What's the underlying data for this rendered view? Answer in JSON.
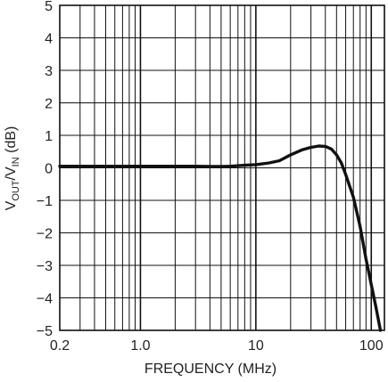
{
  "chart_data": {
    "type": "line",
    "xlabel": "FREQUENCY (MHz)",
    "ylabel_main": "V",
    "ylabel_sub1": "OUT",
    "ylabel_mid": "/V",
    "ylabel_sub2": "IN",
    "ylabel_unit": " (dB)",
    "x_scale": "log",
    "xlim": [
      0.2,
      130
    ],
    "ylim": [
      -5,
      5
    ],
    "x_tick_values": [
      0.2,
      1.0,
      10,
      100
    ],
    "x_tick_labels": [
      "0.2",
      "1.0",
      "10",
      "100"
    ],
    "y_tick_values": [
      5,
      4,
      3,
      2,
      1,
      0,
      -1,
      -2,
      -3,
      -4,
      -5
    ],
    "y_tick_labels": [
      "5",
      "4",
      "3",
      "2",
      "1",
      "0",
      "−1",
      "−2",
      "−3",
      "−4",
      "−5"
    ],
    "grid": true,
    "series": [
      {
        "x": [
          0.2,
          0.3,
          0.5,
          1.0,
          2.0,
          3.0,
          4.0,
          5.0,
          6.0,
          8.0,
          10,
          13,
          16,
          20,
          25,
          30,
          35,
          40,
          45,
          50,
          55,
          60,
          70,
          80,
          90,
          100,
          110,
          120
        ],
        "y": [
          0.05,
          0.05,
          0.05,
          0.05,
          0.05,
          0.05,
          0.04,
          0.04,
          0.05,
          0.08,
          0.1,
          0.15,
          0.22,
          0.4,
          0.55,
          0.63,
          0.67,
          0.66,
          0.58,
          0.4,
          0.15,
          -0.2,
          -0.9,
          -1.8,
          -2.8,
          -3.6,
          -4.3,
          -5.0
        ]
      }
    ]
  }
}
